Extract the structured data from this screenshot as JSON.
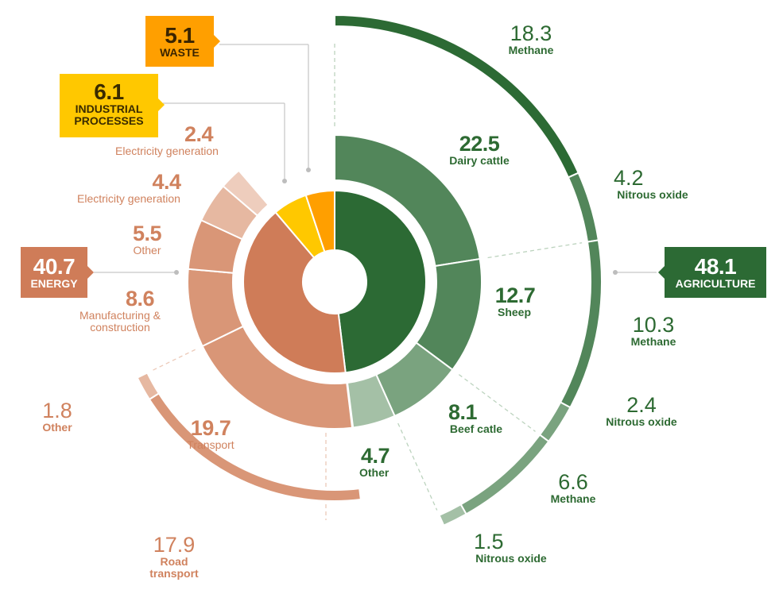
{
  "colors": {
    "agriculture_dark": "#2c6a34",
    "agriculture_mid": "#52865a",
    "agriculture_light": "#7aa37f",
    "agriculture_pale": "#a4c0a6",
    "energy": "#cf7c58",
    "energy_mid": "#d99677",
    "energy_light": "#e6b8a1",
    "energy_pale": "#eecdbd",
    "waste": "#ff9f00",
    "industrial": "#ffc800"
  },
  "tags": {
    "waste": {
      "value": "5.1",
      "name": "WASTE"
    },
    "industrial": {
      "value": "6.1",
      "name": "INDUSTRIAL PROCESSES"
    },
    "energy": {
      "value": "40.7",
      "name": "ENERGY"
    },
    "agriculture": {
      "value": "48.1",
      "name": "AGRICULTURE"
    }
  },
  "labels": {
    "methane_dairy": {
      "value": "18.3",
      "name": "Methane"
    },
    "nitrous_dairy": {
      "value": "4.2",
      "name": "Nitrous oxide"
    },
    "dairy": {
      "value": "22.5",
      "name": "Dairy cattle"
    },
    "sheep": {
      "value": "12.7",
      "name": "Sheep"
    },
    "methane_sheep": {
      "value": "10.3",
      "name": "Methane"
    },
    "nitrous_sheep": {
      "value": "2.4",
      "name": "Nitrous oxide"
    },
    "beef": {
      "value": "8.1",
      "name": "Beef catle"
    },
    "methane_beef": {
      "value": "6.6",
      "name": "Methane"
    },
    "nitrous_beef": {
      "value": "1.5",
      "name": "Nitrous oxide"
    },
    "ag_other": {
      "value": "4.7",
      "name": "Other"
    },
    "elec1": {
      "value": "2.4",
      "name": "Electricity generation"
    },
    "elec2": {
      "value": "4.4",
      "name": "Electricity generation"
    },
    "en_other": {
      "value": "5.5",
      "name": "Other"
    },
    "manufacturing": {
      "value": "8.6",
      "name": "Manufacturing & construction"
    },
    "transport": {
      "value": "19.7",
      "name": "Transport"
    },
    "tr_other": {
      "value": "1.8",
      "name": "Other"
    },
    "road": {
      "value": "17.9",
      "name": "Road transport"
    }
  },
  "chart_data": {
    "type": "pie",
    "sectors": [
      {
        "name": "AGRICULTURE",
        "value": 48.1
      },
      {
        "name": "ENERGY",
        "value": 40.7
      },
      {
        "name": "INDUSTRIAL PROCESSES",
        "value": 6.1
      },
      {
        "name": "WASTE",
        "value": 5.1
      }
    ],
    "subsectors": [
      {
        "sector": "AGRICULTURE",
        "name": "Dairy cattle",
        "value": 22.5
      },
      {
        "sector": "AGRICULTURE",
        "name": "Sheep",
        "value": 12.7
      },
      {
        "sector": "AGRICULTURE",
        "name": "Beef catle",
        "value": 8.1
      },
      {
        "sector": "AGRICULTURE",
        "name": "Other",
        "value": 4.7
      },
      {
        "sector": "ENERGY",
        "name": "Transport",
        "value": 19.7
      },
      {
        "sector": "ENERGY",
        "name": "Manufacturing & construction",
        "value": 8.6
      },
      {
        "sector": "ENERGY",
        "name": "Other",
        "value": 5.5
      },
      {
        "sector": "ENERGY",
        "name": "Electricity generation",
        "value": 4.4
      },
      {
        "sector": "ENERGY",
        "name": "Electricity generation",
        "value": 2.4
      }
    ],
    "gases": [
      {
        "subsector": "Dairy cattle",
        "name": "Methane",
        "value": 18.3
      },
      {
        "subsector": "Dairy cattle",
        "name": "Nitrous oxide",
        "value": 4.2
      },
      {
        "subsector": "Sheep",
        "name": "Methane",
        "value": 10.3
      },
      {
        "subsector": "Sheep",
        "name": "Nitrous oxide",
        "value": 2.4
      },
      {
        "subsector": "Beef catle",
        "name": "Methane",
        "value": 6.6
      },
      {
        "subsector": "Beef catle",
        "name": "Nitrous oxide",
        "value": 1.5
      },
      {
        "subsector": "Transport",
        "name": "Road transport",
        "value": 17.9
      },
      {
        "subsector": "Transport",
        "name": "Other",
        "value": 1.8
      }
    ]
  }
}
